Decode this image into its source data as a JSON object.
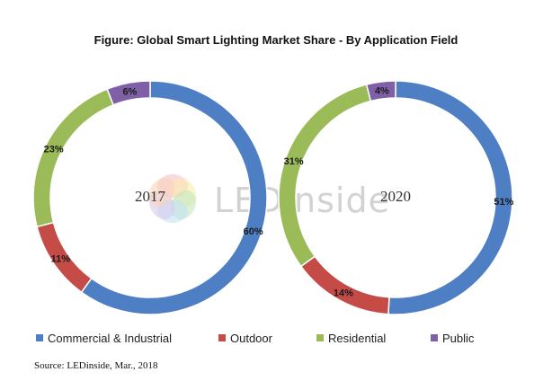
{
  "chart_data": {
    "type": "pie",
    "variant": "donut",
    "title": "Figure: Global Smart Lighting Market Share - By Application Field",
    "categories": [
      "Commercial & Industrial",
      "Outdoor",
      "Residential",
      "Public"
    ],
    "colors": [
      "#4e7fc4",
      "#c54b47",
      "#9bbb59",
      "#7f60a7"
    ],
    "charts": [
      {
        "name": "2017",
        "values": [
          60,
          11,
          23,
          6
        ],
        "labels": [
          "60%",
          "11%",
          "23%",
          "6%"
        ]
      },
      {
        "name": "2020",
        "values": [
          51,
          14,
          31,
          4
        ],
        "labels": [
          "51%",
          "14%",
          "31%",
          "4%"
        ]
      }
    ],
    "legend_position": "bottom",
    "source": "Source: LEDinside, Mar., 2018"
  },
  "watermark": {
    "text_a": "LED",
    "text_b": "inside",
    "logo_colors": [
      "#f4a3b0",
      "#f7e48a",
      "#a8dca0",
      "#a9d6f0",
      "#c9b3e6",
      "#f6c29a"
    ]
  }
}
